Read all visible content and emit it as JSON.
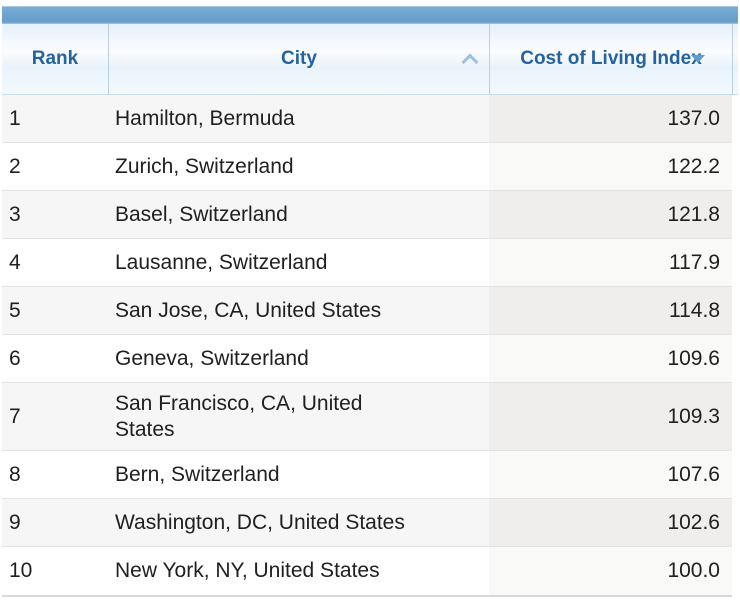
{
  "grid": {
    "caption": "",
    "columns": [
      {
        "label": "Rank",
        "sort_icon": null
      },
      {
        "label": "City",
        "sort_icon": "chevron-up-icon",
        "sort_state": "ascending-available"
      },
      {
        "label": "Cost of Living Index",
        "sort_icon": "triangle-down-icon",
        "sort_state": "sorted-descending"
      }
    ],
    "rows": [
      {
        "rank": "1",
        "city": "Hamilton, Bermuda",
        "index": "137.0"
      },
      {
        "rank": "2",
        "city": "Zurich, Switzerland",
        "index": "122.2"
      },
      {
        "rank": "3",
        "city": "Basel, Switzerland",
        "index": "121.8"
      },
      {
        "rank": "4",
        "city": "Lausanne, Switzerland",
        "index": "117.9"
      },
      {
        "rank": "5",
        "city": "San Jose, CA, United States",
        "index": "114.8"
      },
      {
        "rank": "6",
        "city": "Geneva, Switzerland",
        "index": "109.6"
      },
      {
        "rank": "7",
        "city": "San Francisco, CA, United States",
        "index": "109.3"
      },
      {
        "rank": "8",
        "city": "Bern, Switzerland",
        "index": "107.6"
      },
      {
        "rank": "9",
        "city": "Washington, DC, United States",
        "index": "102.6"
      },
      {
        "rank": "10",
        "city": "New York, NY, United States",
        "index": "100.0"
      }
    ]
  },
  "colors": {
    "caption_bar_blue": "#6da5cf",
    "header_text_blue": "#27639b",
    "header_gradient_top": "#e6f1fa",
    "header_separator": "#b9cfe0",
    "sorted_column_odd_bg": "#efeeec",
    "sorted_column_even_bg": "#f9f9f8",
    "stripe_odd_bg": "#f6f6f6",
    "row_border": "#e2e2e2",
    "sort_active_icon": "#5f9ccd",
    "sort_inactive_icon": "#9cc0de"
  }
}
